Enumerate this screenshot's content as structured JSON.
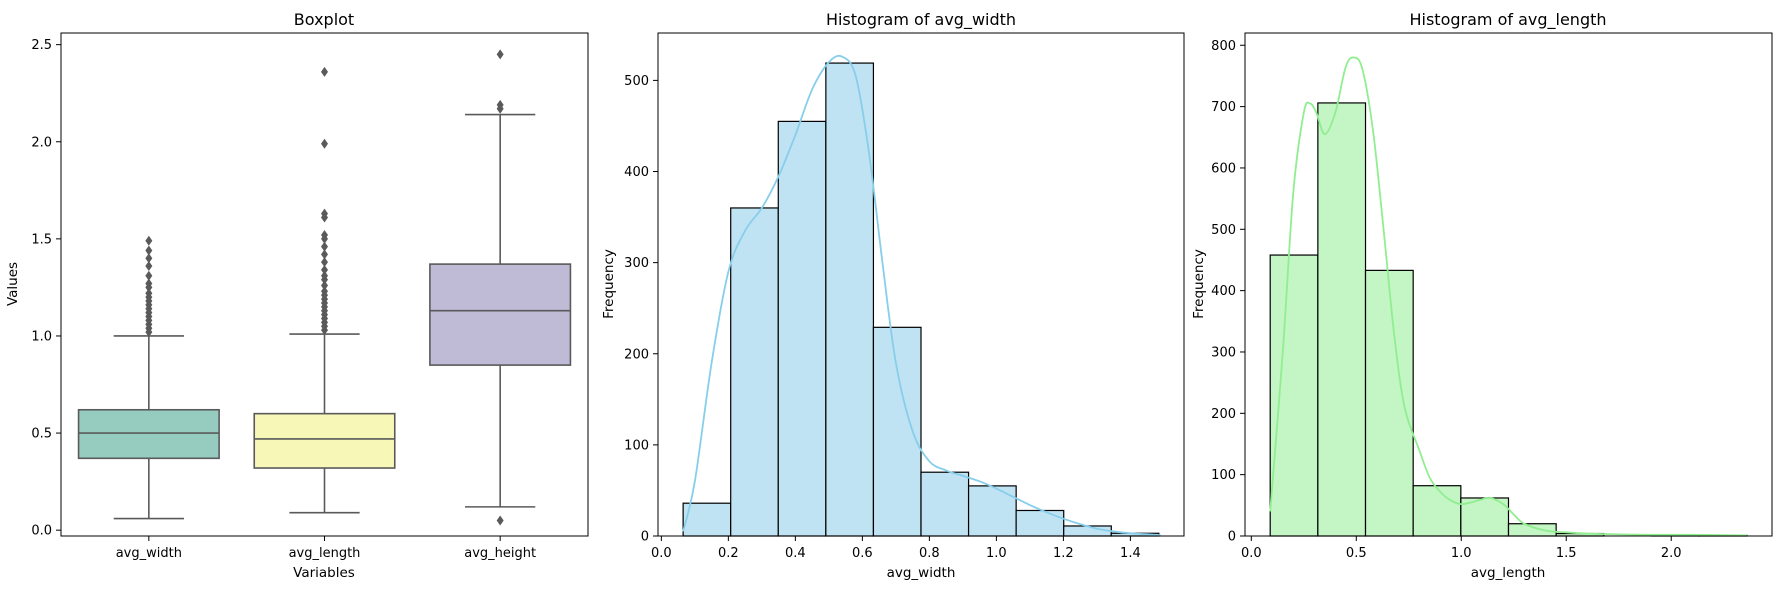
{
  "chart_data": [
    {
      "type": "box",
      "title": "Boxplot",
      "xlabel": "Variables",
      "ylabel": "Values",
      "ylim": [
        -0.03,
        2.56
      ],
      "yticks": [
        "0.0",
        "0.5",
        "1.0",
        "1.5",
        "2.0",
        "2.5"
      ],
      "grid": false,
      "series": [
        {
          "name": "avg_width",
          "color": "#96cbc0",
          "q1": 0.37,
          "median": 0.5,
          "q3": 0.62,
          "whisker_low": 0.06,
          "whisker_high": 1.0,
          "outliers": [
            1.02,
            1.04,
            1.06,
            1.08,
            1.1,
            1.12,
            1.14,
            1.16,
            1.18,
            1.2,
            1.22,
            1.25,
            1.27,
            1.31,
            1.36,
            1.4,
            1.44,
            1.49
          ]
        },
        {
          "name": "avg_length",
          "color": "#f7f7b7",
          "q1": 0.32,
          "median": 0.47,
          "q3": 0.6,
          "whisker_low": 0.09,
          "whisker_high": 1.01,
          "outliers": [
            1.03,
            1.05,
            1.07,
            1.09,
            1.11,
            1.13,
            1.15,
            1.17,
            1.19,
            1.21,
            1.23,
            1.26,
            1.29,
            1.31,
            1.34,
            1.38,
            1.42,
            1.46,
            1.5,
            1.52,
            1.61,
            1.63,
            1.99,
            2.36
          ]
        },
        {
          "name": "avg_height",
          "color": "#bfbbd7",
          "q1": 0.85,
          "median": 1.13,
          "q3": 1.37,
          "whisker_low": 0.12,
          "whisker_high": 2.14,
          "outliers": [
            0.05,
            2.17,
            2.19,
            2.45
          ]
        }
      ]
    },
    {
      "type": "histogram",
      "title": "Histogram of avg_width",
      "xlabel": "avg_width",
      "ylabel": "Frequency",
      "xlim": [
        -0.01,
        1.56
      ],
      "ylim": [
        0,
        552
      ],
      "xticks": [
        0.0,
        0.2,
        0.4,
        0.6,
        0.8,
        1.0,
        1.2,
        1.4
      ],
      "xtick_labels": [
        "0.0",
        "0.2",
        "0.4",
        "0.6",
        "0.8",
        "1.0",
        "1.2",
        "1.4"
      ],
      "yticks": [
        0,
        100,
        200,
        300,
        400,
        500
      ],
      "ytick_labels": [
        "0",
        "100",
        "200",
        "300",
        "400",
        "500"
      ],
      "bar_color": "#bfe3f2",
      "kde_color": "#87ceeb",
      "bin_edges": [
        0.065,
        0.207,
        0.349,
        0.491,
        0.633,
        0.775,
        0.917,
        1.059,
        1.201,
        1.343,
        1.485
      ],
      "counts": [
        36,
        360,
        455,
        519,
        229,
        70,
        55,
        28,
        11,
        3
      ],
      "kde": [
        [
          0.065,
          5
        ],
        [
          0.1,
          60
        ],
        [
          0.15,
          190
        ],
        [
          0.2,
          290
        ],
        [
          0.25,
          335
        ],
        [
          0.3,
          360
        ],
        [
          0.35,
          395
        ],
        [
          0.4,
          440
        ],
        [
          0.45,
          490
        ],
        [
          0.5,
          520
        ],
        [
          0.54,
          526
        ],
        [
          0.58,
          505
        ],
        [
          0.62,
          420
        ],
        [
          0.66,
          300
        ],
        [
          0.7,
          190
        ],
        [
          0.75,
          115
        ],
        [
          0.8,
          82
        ],
        [
          0.85,
          72
        ],
        [
          0.9,
          66
        ],
        [
          0.95,
          60
        ],
        [
          1.0,
          52
        ],
        [
          1.05,
          43
        ],
        [
          1.1,
          34
        ],
        [
          1.15,
          26
        ],
        [
          1.2,
          19
        ],
        [
          1.25,
          13
        ],
        [
          1.3,
          8
        ],
        [
          1.35,
          5
        ],
        [
          1.4,
          3
        ],
        [
          1.49,
          1
        ]
      ]
    },
    {
      "type": "histogram",
      "title": "Histogram of avg_length",
      "xlabel": "avg_length",
      "ylabel": "Frequency",
      "xlim": [
        -0.03,
        2.48
      ],
      "ylim": [
        0,
        820
      ],
      "xticks": [
        0.0,
        0.5,
        1.0,
        1.5,
        2.0
      ],
      "xtick_labels": [
        "0.0",
        "0.5",
        "1.0",
        "1.5",
        "2.0"
      ],
      "yticks": [
        0,
        100,
        200,
        300,
        400,
        500,
        600,
        700,
        800
      ],
      "ytick_labels": [
        "0",
        "100",
        "200",
        "300",
        "400",
        "500",
        "600",
        "700",
        "800"
      ],
      "bar_color": "#c4f5c4",
      "kde_color": "#90ee90",
      "bin_edges": [
        0.09,
        0.317,
        0.544,
        0.771,
        0.998,
        1.225,
        1.452,
        1.679,
        1.906,
        2.133,
        2.36
      ],
      "counts": [
        458,
        706,
        433,
        82,
        62,
        20,
        4,
        0,
        1,
        1
      ],
      "kde": [
        [
          0.09,
          40
        ],
        [
          0.15,
          300
        ],
        [
          0.2,
          560
        ],
        [
          0.25,
          690
        ],
        [
          0.28,
          705
        ],
        [
          0.31,
          690
        ],
        [
          0.35,
          655
        ],
        [
          0.4,
          690
        ],
        [
          0.45,
          765
        ],
        [
          0.49,
          780
        ],
        [
          0.53,
          760
        ],
        [
          0.58,
          660
        ],
        [
          0.63,
          500
        ],
        [
          0.68,
          330
        ],
        [
          0.73,
          210
        ],
        [
          0.8,
          140
        ],
        [
          0.85,
          95
        ],
        [
          0.9,
          72
        ],
        [
          0.95,
          58
        ],
        [
          1.0,
          52
        ],
        [
          1.05,
          55
        ],
        [
          1.1,
          60
        ],
        [
          1.14,
          62
        ],
        [
          1.2,
          52
        ],
        [
          1.25,
          35
        ],
        [
          1.3,
          20
        ],
        [
          1.4,
          9
        ],
        [
          1.5,
          6
        ],
        [
          1.6,
          4
        ],
        [
          1.7,
          3
        ],
        [
          1.9,
          2
        ],
        [
          2.1,
          2
        ],
        [
          2.36,
          1
        ]
      ]
    }
  ]
}
